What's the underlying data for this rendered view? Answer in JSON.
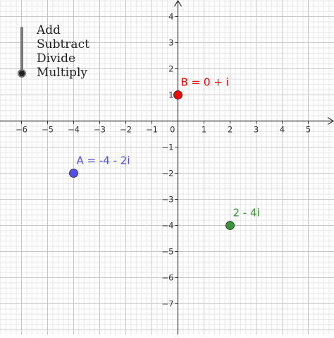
{
  "operation_slider": {
    "options": [
      "Add",
      "Subtract",
      "Divide",
      "Multiply"
    ],
    "selected": "Multiply"
  },
  "axes": {
    "x_ticks": [
      "−6",
      "−5",
      "−4",
      "−3",
      "−2",
      "−1",
      "0",
      "1",
      "2",
      "3",
      "4",
      "5"
    ],
    "y_ticks": [
      "4",
      "3",
      "2",
      "1",
      "−1",
      "−2",
      "−3",
      "−4",
      "−5",
      "−6",
      "−7"
    ]
  },
  "points": [
    {
      "id": "A",
      "label": "A = -4 - 2i",
      "re": -4,
      "im": -2,
      "color": "#5050f0"
    },
    {
      "id": "B",
      "label": "B = 0 + i",
      "re": 0,
      "im": 1,
      "color": "#ff0000"
    },
    {
      "id": "result",
      "label": "2 - 4i",
      "re": 2,
      "im": -4,
      "color": "#339933"
    }
  ],
  "colors": {
    "grid_minor": "#e6e6e6",
    "grid_major": "#c8c8c8",
    "axis": "#333333"
  }
}
